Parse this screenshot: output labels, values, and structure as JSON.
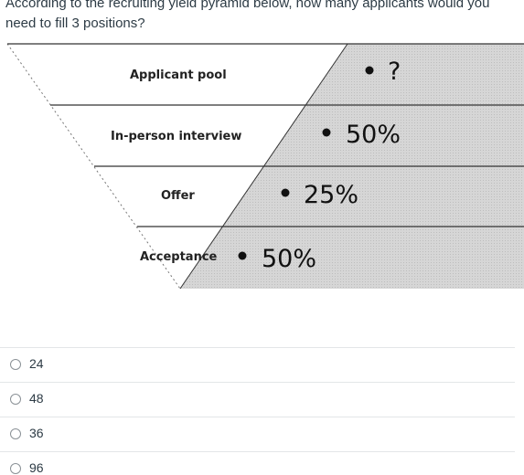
{
  "question": {
    "text": "According to the recruiting yield pyramid below, how many applicants would you need to fill 3 positions?"
  },
  "pyramid": {
    "levels": [
      {
        "label": "Applicant pool",
        "value": "?"
      },
      {
        "label": "In-person interview",
        "value": "50%"
      },
      {
        "label": "Offer",
        "value": "25%"
      },
      {
        "label": "Acceptance",
        "value": "50%"
      }
    ],
    "colors": {
      "shaded": "#d4d4d4",
      "lines": "#333333"
    }
  },
  "answers": [
    {
      "label": "24",
      "selected": false
    },
    {
      "label": "48",
      "selected": false
    },
    {
      "label": "36",
      "selected": false
    },
    {
      "label": "96",
      "selected": false
    }
  ]
}
